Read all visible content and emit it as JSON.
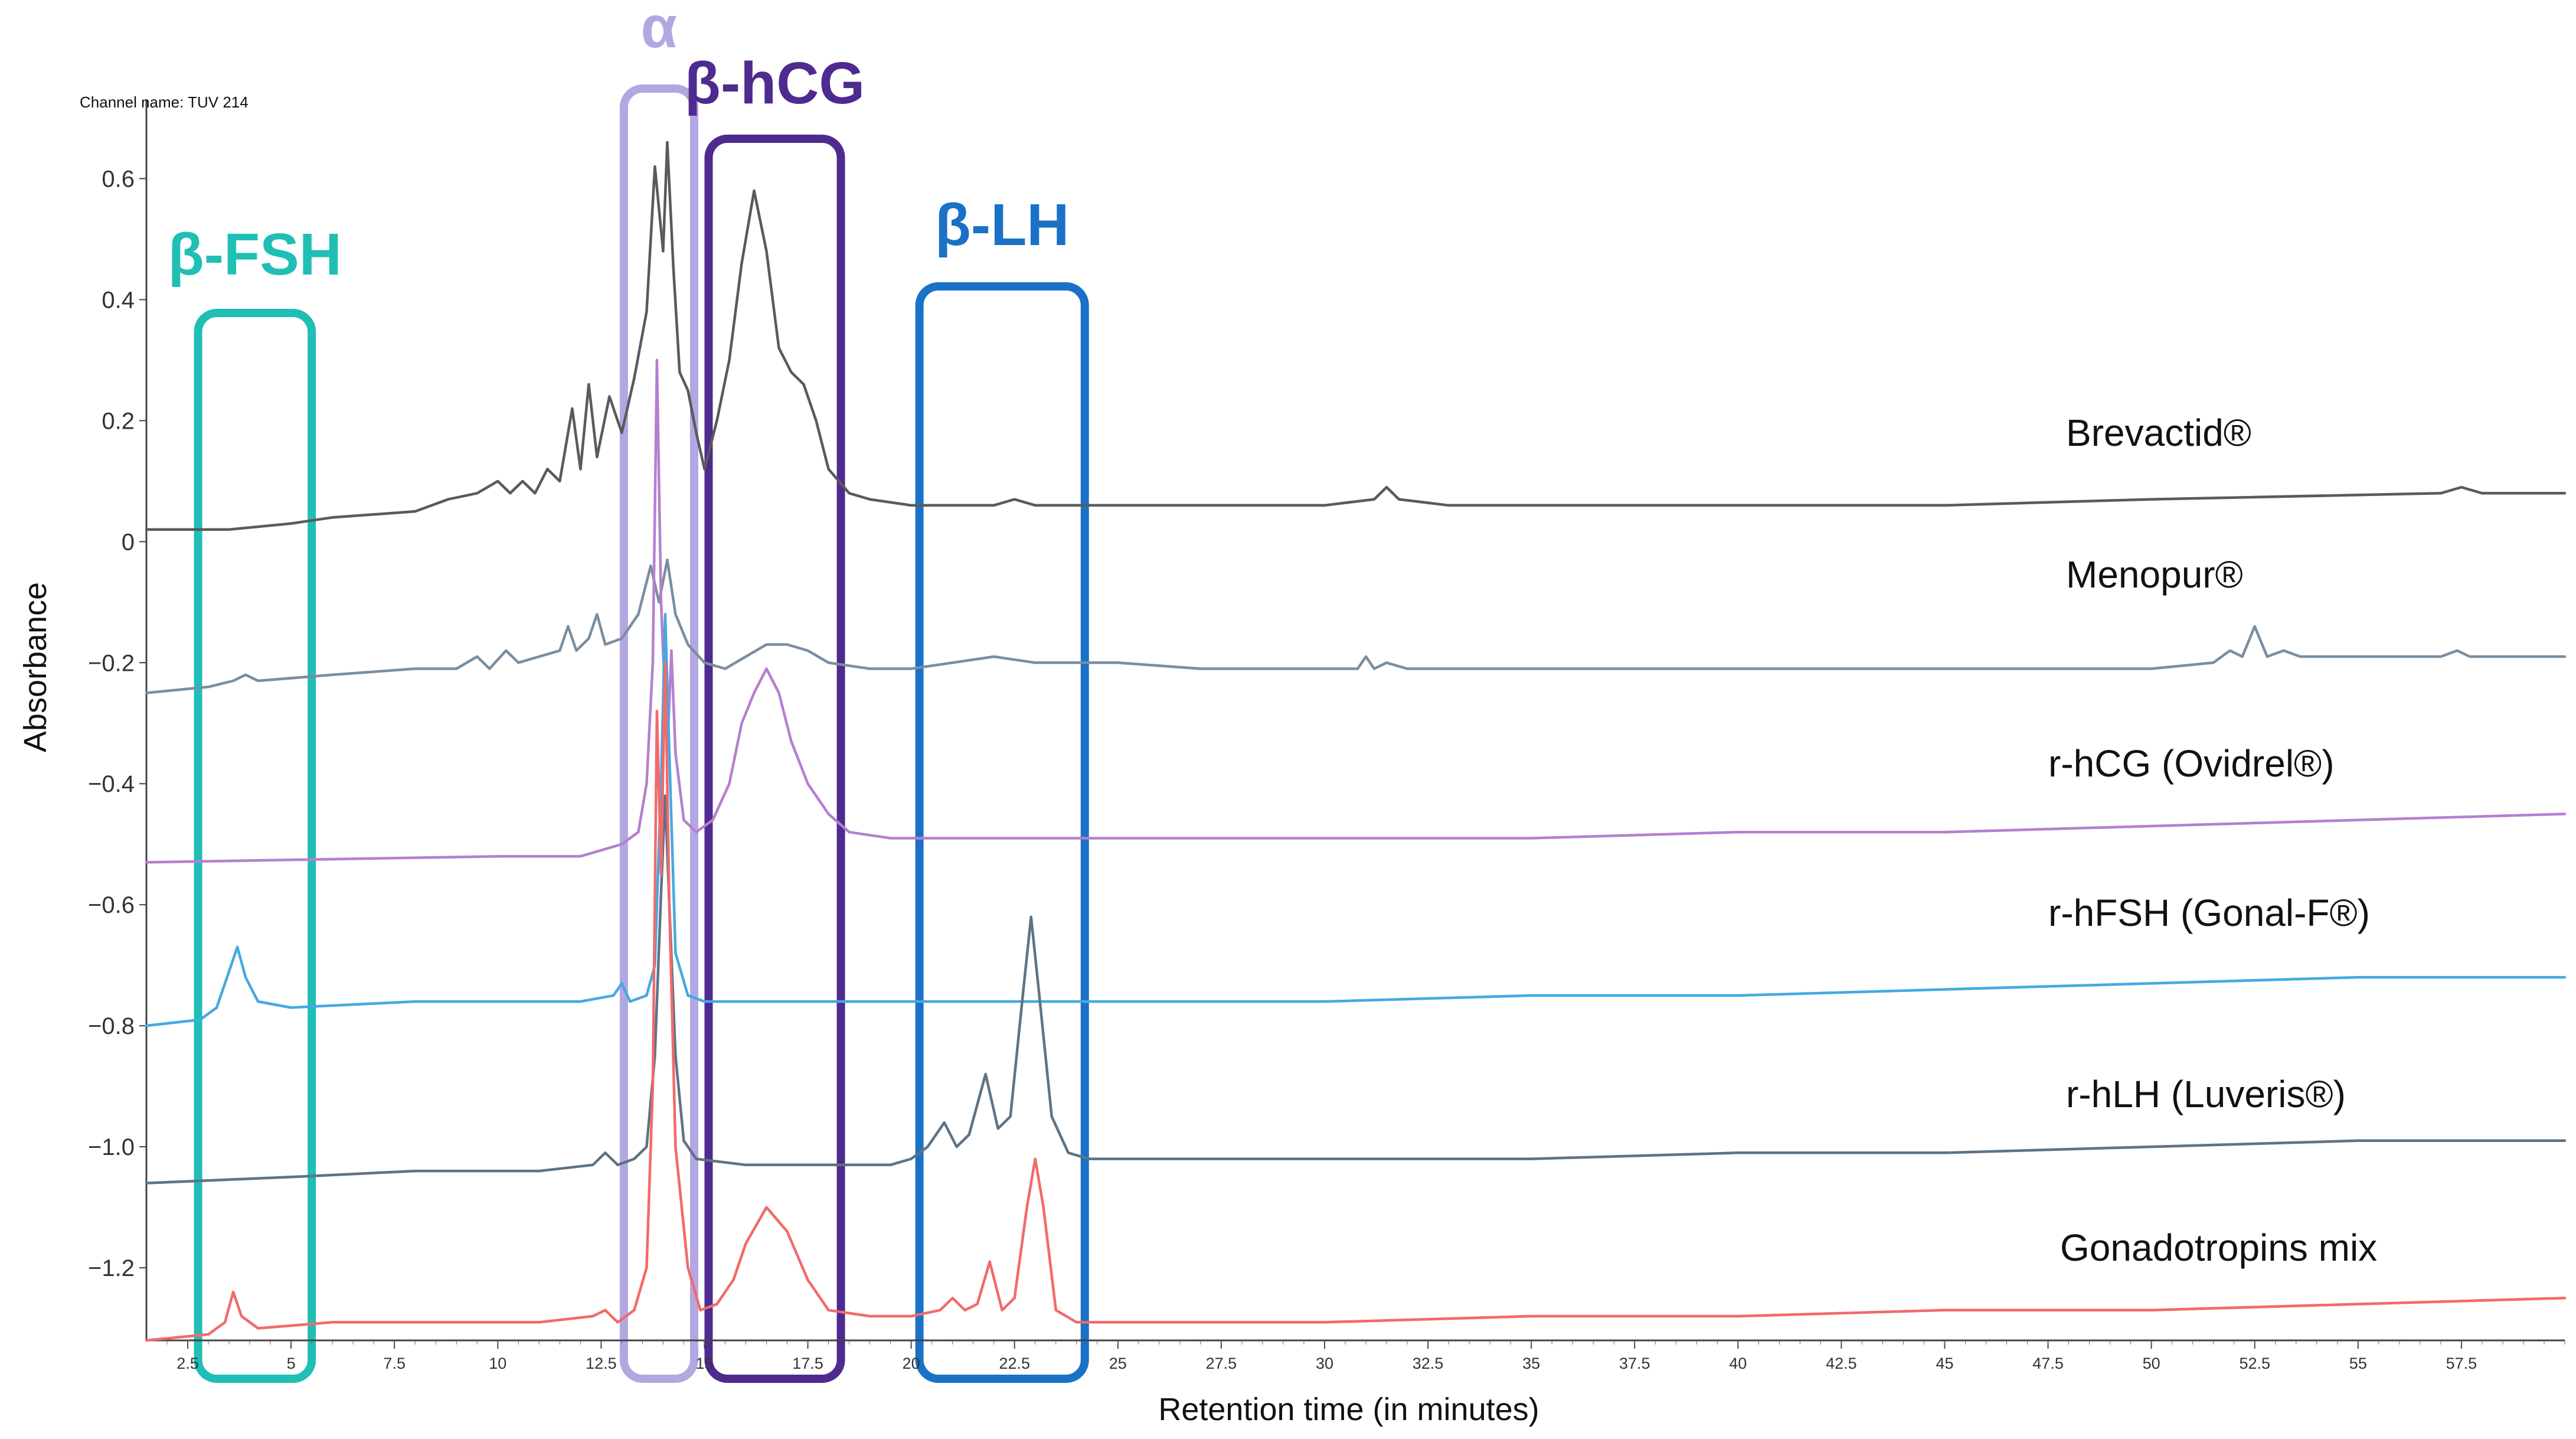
{
  "chart_data": {
    "type": "line",
    "channel_label": "Channel name: TUV 214",
    "xlabel": "Retention time (in minutes)",
    "ylabel": "Absorbance",
    "xlim": [
      1.5,
      60
    ],
    "ylim": [
      -1.32,
      0.7
    ],
    "x_ticks": [
      "2.5",
      "5",
      "7.5",
      "10",
      "12.5",
      "15",
      "17.5",
      "20",
      "22.5",
      "25",
      "27.5",
      "30",
      "32.5",
      "35",
      "37.5",
      "40",
      "42.5",
      "45",
      "47.5",
      "50",
      "52.5",
      "55",
      "57.5"
    ],
    "y_ticks": [
      "0.6",
      "0.4",
      "0.2",
      "0",
      "−0.2",
      "−0.4",
      "−0.6",
      "−0.8",
      "−1.0",
      "−1.2"
    ],
    "series": [
      {
        "name": "Brevactid®",
        "color": "#5a5a5a",
        "points": [
          [
            1.5,
            0.02
          ],
          [
            3.5,
            0.02
          ],
          [
            5,
            0.03
          ],
          [
            6,
            0.04
          ],
          [
            8,
            0.05
          ],
          [
            8.8,
            0.07
          ],
          [
            9.5,
            0.08
          ],
          [
            10,
            0.1
          ],
          [
            10.3,
            0.08
          ],
          [
            10.6,
            0.1
          ],
          [
            10.9,
            0.08
          ],
          [
            11.2,
            0.12
          ],
          [
            11.5,
            0.1
          ],
          [
            11.8,
            0.22
          ],
          [
            12,
            0.12
          ],
          [
            12.2,
            0.26
          ],
          [
            12.4,
            0.14
          ],
          [
            12.7,
            0.24
          ],
          [
            13,
            0.18
          ],
          [
            13.3,
            0.27
          ],
          [
            13.6,
            0.38
          ],
          [
            13.8,
            0.62
          ],
          [
            14,
            0.48
          ],
          [
            14.1,
            0.66
          ],
          [
            14.25,
            0.45
          ],
          [
            14.4,
            0.28
          ],
          [
            14.6,
            0.25
          ],
          [
            14.8,
            0.18
          ],
          [
            15,
            0.12
          ],
          [
            15.3,
            0.2
          ],
          [
            15.6,
            0.3
          ],
          [
            15.9,
            0.46
          ],
          [
            16.2,
            0.58
          ],
          [
            16.5,
            0.48
          ],
          [
            16.8,
            0.32
          ],
          [
            17.1,
            0.28
          ],
          [
            17.4,
            0.26
          ],
          [
            17.7,
            0.2
          ],
          [
            18,
            0.12
          ],
          [
            18.5,
            0.08
          ],
          [
            19,
            0.07
          ],
          [
            20,
            0.06
          ],
          [
            21,
            0.06
          ],
          [
            22,
            0.06
          ],
          [
            22.5,
            0.07
          ],
          [
            23,
            0.06
          ],
          [
            25,
            0.06
          ],
          [
            30,
            0.06
          ],
          [
            31.2,
            0.07
          ],
          [
            31.5,
            0.09
          ],
          [
            31.8,
            0.07
          ],
          [
            33,
            0.06
          ],
          [
            40,
            0.06
          ],
          [
            45,
            0.06
          ],
          [
            50,
            0.07
          ],
          [
            57,
            0.08
          ],
          [
            57.5,
            0.09
          ],
          [
            58,
            0.08
          ],
          [
            60,
            0.08
          ]
        ]
      },
      {
        "name": "Menopur®",
        "color": "#7a8ea0",
        "points": [
          [
            1.5,
            -0.25
          ],
          [
            3,
            -0.24
          ],
          [
            3.6,
            -0.23
          ],
          [
            3.9,
            -0.22
          ],
          [
            4.2,
            -0.23
          ],
          [
            6,
            -0.22
          ],
          [
            8,
            -0.21
          ],
          [
            9,
            -0.21
          ],
          [
            9.5,
            -0.19
          ],
          [
            9.8,
            -0.21
          ],
          [
            10.2,
            -0.18
          ],
          [
            10.5,
            -0.2
          ],
          [
            11,
            -0.19
          ],
          [
            11.5,
            -0.18
          ],
          [
            11.7,
            -0.14
          ],
          [
            11.9,
            -0.18
          ],
          [
            12.2,
            -0.16
          ],
          [
            12.4,
            -0.12
          ],
          [
            12.6,
            -0.17
          ],
          [
            13,
            -0.16
          ],
          [
            13.4,
            -0.12
          ],
          [
            13.7,
            -0.04
          ],
          [
            13.9,
            -0.1
          ],
          [
            14.1,
            -0.03
          ],
          [
            14.3,
            -0.12
          ],
          [
            14.6,
            -0.17
          ],
          [
            15,
            -0.2
          ],
          [
            15.5,
            -0.21
          ],
          [
            16,
            -0.19
          ],
          [
            16.5,
            -0.17
          ],
          [
            17,
            -0.17
          ],
          [
            17.5,
            -0.18
          ],
          [
            18,
            -0.2
          ],
          [
            19,
            -0.21
          ],
          [
            20,
            -0.21
          ],
          [
            21,
            -0.2
          ],
          [
            22,
            -0.19
          ],
          [
            23,
            -0.2
          ],
          [
            25,
            -0.2
          ],
          [
            27,
            -0.21
          ],
          [
            29,
            -0.21
          ],
          [
            30.8,
            -0.21
          ],
          [
            31,
            -0.19
          ],
          [
            31.2,
            -0.21
          ],
          [
            31.5,
            -0.2
          ],
          [
            32,
            -0.21
          ],
          [
            35,
            -0.21
          ],
          [
            40,
            -0.21
          ],
          [
            45,
            -0.21
          ],
          [
            50,
            -0.21
          ],
          [
            51.5,
            -0.2
          ],
          [
            51.9,
            -0.18
          ],
          [
            52.2,
            -0.19
          ],
          [
            52.5,
            -0.14
          ],
          [
            52.8,
            -0.19
          ],
          [
            53.2,
            -0.18
          ],
          [
            53.6,
            -0.19
          ],
          [
            54,
            -0.19
          ],
          [
            57,
            -0.19
          ],
          [
            57.4,
            -0.18
          ],
          [
            57.7,
            -0.19
          ],
          [
            60,
            -0.19
          ]
        ]
      },
      {
        "name": "r-hCG (Ovidrel®)",
        "color": "#b57fcf",
        "points": [
          [
            1.5,
            -0.53
          ],
          [
            10,
            -0.52
          ],
          [
            12,
            -0.52
          ],
          [
            13,
            -0.5
          ],
          [
            13.4,
            -0.48
          ],
          [
            13.6,
            -0.4
          ],
          [
            13.75,
            -0.2
          ],
          [
            13.85,
            0.3
          ],
          [
            13.95,
            -0.1
          ],
          [
            14.1,
            -0.35
          ],
          [
            14.2,
            -0.18
          ],
          [
            14.3,
            -0.35
          ],
          [
            14.5,
            -0.46
          ],
          [
            14.8,
            -0.48
          ],
          [
            15.2,
            -0.46
          ],
          [
            15.6,
            -0.4
          ],
          [
            15.9,
            -0.3
          ],
          [
            16.2,
            -0.25
          ],
          [
            16.5,
            -0.21
          ],
          [
            16.8,
            -0.25
          ],
          [
            17.1,
            -0.33
          ],
          [
            17.5,
            -0.4
          ],
          [
            18,
            -0.45
          ],
          [
            18.5,
            -0.48
          ],
          [
            19.5,
            -0.49
          ],
          [
            20.5,
            -0.49
          ],
          [
            25,
            -0.49
          ],
          [
            30,
            -0.49
          ],
          [
            35,
            -0.49
          ],
          [
            40,
            -0.48
          ],
          [
            45,
            -0.48
          ],
          [
            50,
            -0.47
          ],
          [
            55,
            -0.46
          ],
          [
            60,
            -0.45
          ]
        ]
      },
      {
        "name": "r-hFSH (Gonal-F®)",
        "color": "#45a9e0",
        "points": [
          [
            1.5,
            -0.8
          ],
          [
            2.8,
            -0.79
          ],
          [
            3.2,
            -0.77
          ],
          [
            3.5,
            -0.71
          ],
          [
            3.7,
            -0.67
          ],
          [
            3.9,
            -0.72
          ],
          [
            4.2,
            -0.76
          ],
          [
            5,
            -0.77
          ],
          [
            8,
            -0.76
          ],
          [
            12,
            -0.76
          ],
          [
            12.8,
            -0.75
          ],
          [
            13,
            -0.73
          ],
          [
            13.2,
            -0.76
          ],
          [
            13.6,
            -0.75
          ],
          [
            13.8,
            -0.7
          ],
          [
            13.95,
            -0.4
          ],
          [
            14.05,
            -0.12
          ],
          [
            14.15,
            -0.35
          ],
          [
            14.3,
            -0.68
          ],
          [
            14.6,
            -0.75
          ],
          [
            15,
            -0.76
          ],
          [
            20,
            -0.76
          ],
          [
            25,
            -0.76
          ],
          [
            30,
            -0.76
          ],
          [
            35,
            -0.75
          ],
          [
            40,
            -0.75
          ],
          [
            45,
            -0.74
          ],
          [
            50,
            -0.73
          ],
          [
            55,
            -0.72
          ],
          [
            60,
            -0.72
          ]
        ]
      },
      {
        "name": "r-hLH (Luveris®)",
        "color": "#5e7385",
        "points": [
          [
            1.5,
            -1.06
          ],
          [
            5,
            -1.05
          ],
          [
            8,
            -1.04
          ],
          [
            11,
            -1.04
          ],
          [
            12.3,
            -1.03
          ],
          [
            12.6,
            -1.01
          ],
          [
            12.9,
            -1.03
          ],
          [
            13.3,
            -1.02
          ],
          [
            13.6,
            -1.0
          ],
          [
            13.8,
            -0.85
          ],
          [
            13.95,
            -0.58
          ],
          [
            14.05,
            -0.42
          ],
          [
            14.15,
            -0.6
          ],
          [
            14.3,
            -0.85
          ],
          [
            14.5,
            -0.99
          ],
          [
            14.8,
            -1.02
          ],
          [
            16,
            -1.03
          ],
          [
            18,
            -1.03
          ],
          [
            19.5,
            -1.03
          ],
          [
            20,
            -1.02
          ],
          [
            20.4,
            -1.0
          ],
          [
            20.8,
            -0.96
          ],
          [
            21.1,
            -1.0
          ],
          [
            21.4,
            -0.98
          ],
          [
            21.8,
            -0.88
          ],
          [
            22.1,
            -0.97
          ],
          [
            22.4,
            -0.95
          ],
          [
            22.7,
            -0.75
          ],
          [
            22.9,
            -0.62
          ],
          [
            23.1,
            -0.75
          ],
          [
            23.4,
            -0.95
          ],
          [
            23.8,
            -1.01
          ],
          [
            24.3,
            -1.02
          ],
          [
            26,
            -1.02
          ],
          [
            30,
            -1.02
          ],
          [
            35,
            -1.02
          ],
          [
            40,
            -1.01
          ],
          [
            45,
            -1.01
          ],
          [
            50,
            -1.0
          ],
          [
            55,
            -0.99
          ],
          [
            60,
            -0.99
          ]
        ]
      },
      {
        "name": "Gonadotropins mix",
        "color": "#f26a6a",
        "points": [
          [
            1.5,
            -1.32
          ],
          [
            3,
            -1.31
          ],
          [
            3.4,
            -1.29
          ],
          [
            3.6,
            -1.24
          ],
          [
            3.8,
            -1.28
          ],
          [
            4.2,
            -1.3
          ],
          [
            6,
            -1.29
          ],
          [
            9,
            -1.29
          ],
          [
            11,
            -1.29
          ],
          [
            12.3,
            -1.28
          ],
          [
            12.6,
            -1.27
          ],
          [
            12.9,
            -1.29
          ],
          [
            13.3,
            -1.27
          ],
          [
            13.6,
            -1.2
          ],
          [
            13.75,
            -0.9
          ],
          [
            13.85,
            -0.28
          ],
          [
            13.95,
            -0.55
          ],
          [
            14.05,
            -0.2
          ],
          [
            14.15,
            -0.6
          ],
          [
            14.3,
            -1.0
          ],
          [
            14.6,
            -1.2
          ],
          [
            14.9,
            -1.27
          ],
          [
            15.3,
            -1.26
          ],
          [
            15.7,
            -1.22
          ],
          [
            16,
            -1.16
          ],
          [
            16.5,
            -1.1
          ],
          [
            17,
            -1.14
          ],
          [
            17.5,
            -1.22
          ],
          [
            18,
            -1.27
          ],
          [
            19,
            -1.28
          ],
          [
            20,
            -1.28
          ],
          [
            20.7,
            -1.27
          ],
          [
            21,
            -1.25
          ],
          [
            21.3,
            -1.27
          ],
          [
            21.6,
            -1.26
          ],
          [
            21.9,
            -1.19
          ],
          [
            22.2,
            -1.27
          ],
          [
            22.5,
            -1.25
          ],
          [
            22.8,
            -1.1
          ],
          [
            23,
            -1.02
          ],
          [
            23.2,
            -1.1
          ],
          [
            23.5,
            -1.27
          ],
          [
            24,
            -1.29
          ],
          [
            26,
            -1.29
          ],
          [
            30,
            -1.29
          ],
          [
            35,
            -1.28
          ],
          [
            40,
            -1.28
          ],
          [
            45,
            -1.27
          ],
          [
            50,
            -1.27
          ],
          [
            55,
            -1.26
          ],
          [
            60,
            -1.25
          ]
        ]
      }
    ],
    "annotations": [
      {
        "label": "β-FSH",
        "color": "#1fbfb5",
        "x_range": [
          2.75,
          5.5
        ]
      },
      {
        "label": "α",
        "color": "#b3a7e2",
        "x_range": [
          13.05,
          14.75
        ]
      },
      {
        "label": "β-hCG",
        "color": "#4f2a8f",
        "x_range": [
          15.1,
          18.3
        ]
      },
      {
        "label": "β-LH",
        "color": "#1a72c7",
        "x_range": [
          20.2,
          24.2
        ]
      }
    ]
  }
}
